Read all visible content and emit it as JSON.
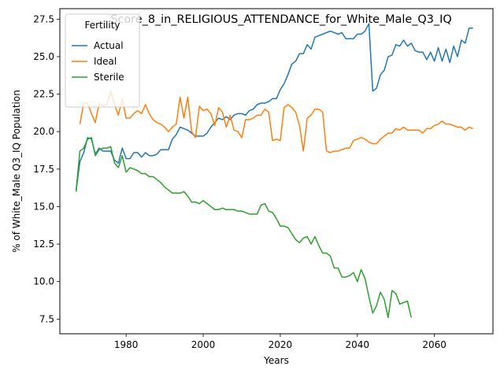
{
  "chart_data": {
    "type": "line",
    "title": "Score_8_in_RELIGIOUS_ATTENDANCE_for_White_Male_Q3_IQ",
    "xlabel": "Years",
    "ylabel": "% of White_Male Q3_IQ Population",
    "xlim": [
      1962.8,
      2075.2
    ],
    "ylim": [
      6.52,
      28.2
    ],
    "xticks": [
      1980,
      2000,
      2020,
      2040,
      2060
    ],
    "yticks": [
      7.5,
      10.0,
      12.5,
      15.0,
      17.5,
      20.0,
      22.5,
      25.0,
      27.5
    ],
    "ytick_labels": [
      "7.5",
      "10.0",
      "12.5",
      "15.0",
      "17.5",
      "20.0",
      "22.5",
      "25.0",
      "27.5"
    ],
    "grid": false,
    "legend": {
      "title": "Fertility",
      "position": "top-left"
    },
    "series": [
      {
        "name": "Actual",
        "color": "#1f77b4",
        "x": [
          1967,
          1968,
          1969,
          1970,
          1971,
          1972,
          1973,
          1974,
          1975,
          1976,
          1977,
          1978,
          1979,
          1980,
          1981,
          1982,
          1983,
          1984,
          1985,
          1986,
          1987,
          1988,
          1989,
          1990,
          1991,
          1992,
          1993,
          1994,
          1995,
          1996,
          1997,
          1998,
          1999,
          2000,
          2001,
          2002,
          2003,
          2004,
          2005,
          2006,
          2007,
          2008,
          2009,
          2010,
          2011,
          2012,
          2013,
          2014,
          2015,
          2016,
          2017,
          2018,
          2019,
          2020,
          2021,
          2022,
          2023,
          2024,
          2025,
          2026,
          2027,
          2028,
          2029,
          2030,
          2031,
          2032,
          2033,
          2034,
          2035,
          2036,
          2037,
          2038,
          2039,
          2040,
          2041,
          2042,
          2043,
          2044,
          2045,
          2046,
          2047,
          2048,
          2049,
          2050,
          2051,
          2052,
          2053,
          2054,
          2055,
          2056,
          2057,
          2058,
          2059,
          2060,
          2061,
          2062,
          2063,
          2064,
          2065,
          2066,
          2067,
          2068,
          2069,
          2070
        ],
        "y": [
          16.0,
          18.0,
          18.6,
          19.6,
          19.5,
          18.5,
          18.9,
          18.7,
          18.7,
          18.7,
          18.1,
          17.9,
          18.9,
          18.2,
          18.2,
          18.6,
          18.6,
          18.3,
          18.6,
          18.4,
          18.4,
          18.5,
          18.8,
          18.8,
          18.8,
          19.5,
          19.8,
          20.3,
          20.2,
          20.1,
          19.9,
          19.7,
          19.7,
          19.7,
          19.9,
          20.3,
          20.6,
          20.9,
          20.8,
          21.0,
          20.8,
          21.1,
          21.2,
          21.2,
          21.1,
          21.4,
          21.5,
          21.8,
          21.9,
          21.9,
          22.0,
          22.2,
          22.2,
          22.8,
          23.2,
          23.8,
          24.5,
          24.7,
          25.2,
          25.2,
          25.8,
          25.5,
          26.3,
          26.4,
          26.5,
          26.6,
          26.7,
          26.6,
          26.5,
          26.6,
          26.2,
          26.2,
          26.2,
          26.5,
          26.5,
          26.7,
          27.2,
          22.7,
          22.9,
          23.8,
          24.1,
          25.0,
          25.1,
          25.8,
          25.7,
          26.1,
          25.7,
          25.9,
          25.4,
          25.3,
          25.3,
          24.8,
          25.3,
          24.7,
          25.6,
          24.7,
          25.5,
          24.6,
          25.7,
          25.0,
          26.1,
          25.9,
          26.9,
          26.9
        ]
      },
      {
        "name": "Ideal",
        "color": "#ff7f0e",
        "x": [
          1968,
          1969,
          1970,
          1971,
          1972,
          1973,
          1974,
          1975,
          1976,
          1977,
          1978,
          1979,
          1980,
          1981,
          1982,
          1983,
          1984,
          1985,
          1986,
          1987,
          1988,
          1989,
          1990,
          1991,
          1992,
          1993,
          1994,
          1995,
          1996,
          1997,
          1998,
          1999,
          2000,
          2001,
          2002,
          2003,
          2004,
          2005,
          2006,
          2007,
          2008,
          2009,
          2010,
          2011,
          2012,
          2013,
          2014,
          2015,
          2016,
          2017,
          2018,
          2019,
          2020,
          2021,
          2022,
          2023,
          2024,
          2025,
          2026,
          2027,
          2028,
          2029,
          2030,
          2031,
          2032,
          2033,
          2034,
          2035,
          2036,
          2037,
          2038,
          2039,
          2040,
          2041,
          2042,
          2043,
          2044,
          2045,
          2046,
          2047,
          2048,
          2049,
          2050,
          2051,
          2052,
          2053,
          2054,
          2055,
          2056,
          2057,
          2058,
          2059,
          2060,
          2061,
          2062,
          2063,
          2064,
          2065,
          2066,
          2067,
          2068,
          2069,
          2070
        ],
        "y": [
          20.5,
          21.9,
          21.9,
          21.2,
          20.6,
          21.9,
          21.7,
          21.8,
          22.7,
          21.8,
          21.1,
          22.2,
          20.9,
          20.9,
          21.2,
          21.4,
          21.2,
          21.8,
          21.2,
          20.8,
          20.6,
          20.5,
          20.3,
          20.0,
          20.3,
          20.5,
          22.3,
          20.9,
          22.3,
          20.0,
          19.6,
          21.7,
          21.4,
          21.5,
          21.2,
          20.4,
          21.6,
          21.3,
          20.3,
          21.1,
          20.1,
          20.0,
          19.6,
          20.8,
          20.8,
          20.9,
          21.1,
          21.1,
          21.5,
          21.3,
          19.4,
          19.5,
          19.4,
          21.6,
          21.8,
          21.6,
          21.3,
          20.4,
          18.7,
          20.9,
          21.1,
          21.5,
          21.5,
          21.3,
          18.7,
          18.6,
          18.7,
          18.7,
          18.8,
          18.9,
          18.9,
          19.4,
          19.5,
          19.6,
          19.5,
          19.3,
          19.2,
          19.2,
          19.5,
          19.7,
          19.9,
          19.9,
          20.2,
          20.1,
          20.3,
          20.1,
          20.1,
          20.1,
          20.1,
          19.9,
          20.2,
          20.2,
          20.4,
          20.5,
          20.7,
          20.5,
          20.5,
          20.4,
          20.3,
          20.3,
          20.1,
          20.3,
          20.2
        ]
      },
      {
        "name": "Sterile",
        "color": "#2ca02c",
        "x": [
          1967,
          1968,
          1969,
          1970,
          1971,
          1972,
          1973,
          1974,
          1975,
          1976,
          1977,
          1978,
          1979,
          1980,
          1981,
          1982,
          1983,
          1984,
          1985,
          1986,
          1987,
          1988,
          1989,
          1990,
          1991,
          1992,
          1993,
          1994,
          1995,
          1996,
          1997,
          1998,
          1999,
          2000,
          2001,
          2002,
          2003,
          2004,
          2005,
          2006,
          2007,
          2008,
          2009,
          2010,
          2011,
          2012,
          2013,
          2014,
          2015,
          2016,
          2017,
          2018,
          2019,
          2020,
          2021,
          2022,
          2023,
          2024,
          2025,
          2026,
          2027,
          2028,
          2029,
          2030,
          2031,
          2032,
          2033,
          2034,
          2035,
          2036,
          2037,
          2038,
          2039,
          2040,
          2041,
          2042,
          2043,
          2044,
          2045,
          2046,
          2047,
          2048,
          2049,
          2050,
          2051,
          2052,
          2053,
          2054
        ],
        "y": [
          16.0,
          18.7,
          18.9,
          19.5,
          19.6,
          18.4,
          18.8,
          18.9,
          18.9,
          19.0,
          17.9,
          17.6,
          18.4,
          17.3,
          17.6,
          17.5,
          17.4,
          17.2,
          17.2,
          17.0,
          17.0,
          16.8,
          16.6,
          16.3,
          16.1,
          15.9,
          15.9,
          15.9,
          16.0,
          15.7,
          15.3,
          15.3,
          15.2,
          15.4,
          15.2,
          15.0,
          14.8,
          14.8,
          14.9,
          14.8,
          14.8,
          14.8,
          14.7,
          14.7,
          14.6,
          14.5,
          14.5,
          14.5,
          15.1,
          15.2,
          14.7,
          14.6,
          14.2,
          13.7,
          13.7,
          13.6,
          13.2,
          12.8,
          12.6,
          12.9,
          13.0,
          12.5,
          13.0,
          12.4,
          11.9,
          11.9,
          11.7,
          10.9,
          10.9,
          10.3,
          10.3,
          10.4,
          10.6,
          10.0,
          10.8,
          10.2,
          9.0,
          7.9,
          8.4,
          9.3,
          8.8,
          7.6,
          9.4,
          9.2,
          8.5,
          8.6,
          8.7,
          7.6
        ]
      }
    ]
  }
}
